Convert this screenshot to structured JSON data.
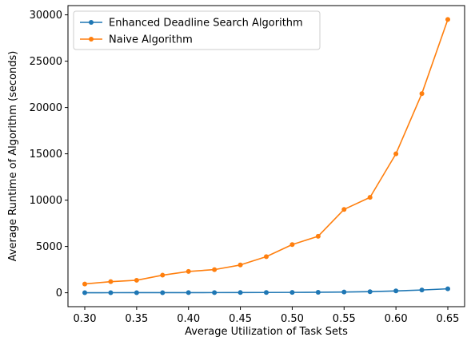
{
  "chart_data": {
    "type": "line",
    "title": "",
    "xlabel": "Average Utilization of Task Sets",
    "ylabel": "Average Runtime of Algorithm (seconds)",
    "x": [
      0.3,
      0.325,
      0.35,
      0.375,
      0.4,
      0.425,
      0.45,
      0.475,
      0.5,
      0.525,
      0.55,
      0.575,
      0.6,
      0.625,
      0.65
    ],
    "xlim": [
      0.2838,
      0.6662
    ],
    "ylim": [
      -1500,
      31000
    ],
    "xticks": [
      0.3,
      0.35,
      0.4,
      0.45,
      0.5,
      0.55,
      0.6,
      0.65
    ],
    "xtick_labels": [
      "0.30",
      "0.35",
      "0.40",
      "0.45",
      "0.50",
      "0.55",
      "0.60",
      "0.65"
    ],
    "yticks": [
      0,
      5000,
      10000,
      15000,
      20000,
      25000,
      30000
    ],
    "ytick_labels": [
      "0",
      "5000",
      "10000",
      "15000",
      "20000",
      "25000",
      "30000"
    ],
    "grid": false,
    "legend_position": "top-left",
    "series": [
      {
        "name": "Enhanced Deadline Search Algorithm",
        "color": "#1f77b4",
        "marker": "circle",
        "values": [
          5,
          8,
          10,
          12,
          15,
          20,
          25,
          30,
          40,
          55,
          80,
          120,
          200,
          300,
          430
        ]
      },
      {
        "name": "Naive Algorithm",
        "color": "#ff7f0e",
        "marker": "circle",
        "values": [
          950,
          1200,
          1350,
          1900,
          2300,
          2500,
          3000,
          3900,
          5200,
          6100,
          9000,
          10300,
          15000,
          21500,
          29500
        ]
      }
    ]
  }
}
